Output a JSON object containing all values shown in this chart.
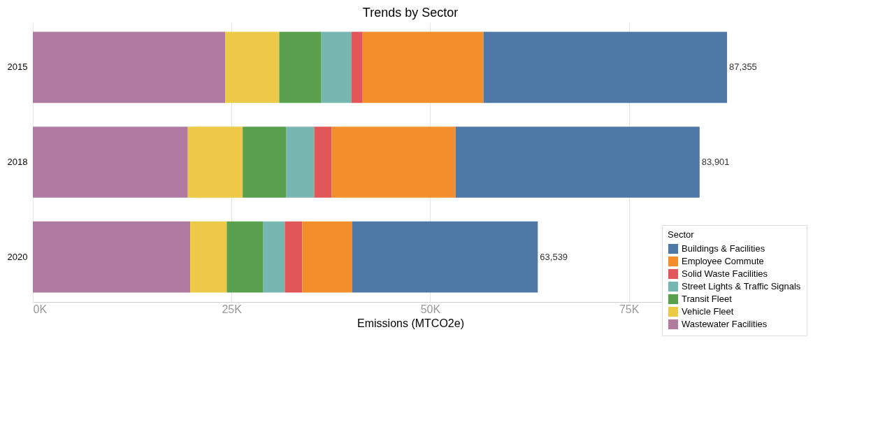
{
  "chart_data": {
    "type": "bar",
    "orientation": "horizontal",
    "stacked": true,
    "title": "Trends by Sector",
    "xlabel": "Emissions (MTCO2e)",
    "legend_title": "Sector",
    "legend": "bottom right",
    "grid": "x",
    "categories": [
      "2015",
      "2018",
      "2020"
    ],
    "series": [
      {
        "name": "Wastewater Facilities",
        "color": "#b07aa1",
        "values": [
          24200,
          19500,
          19800
        ]
      },
      {
        "name": "Vehicle Fleet",
        "color": "#edc948",
        "values": [
          6800,
          6900,
          4600
        ]
      },
      {
        "name": "Transit Fleet",
        "color": "#59a14f",
        "values": [
          5300,
          5500,
          4600
        ]
      },
      {
        "name": "Street Lights & Traffic Signals",
        "color": "#76b7b2",
        "values": [
          3800,
          3500,
          2700
        ]
      },
      {
        "name": "Solid Waste Facilities",
        "color": "#e15759",
        "values": [
          1400,
          2200,
          2200
        ]
      },
      {
        "name": "Employee Commute",
        "color": "#f28e2b",
        "values": [
          15200,
          15600,
          6300
        ]
      },
      {
        "name": "Buildings & Facilities",
        "color": "#4e79a7",
        "values": [
          30655,
          30701,
          23339
        ]
      }
    ],
    "totals": [
      "87,355",
      "83,901",
      "63,539"
    ],
    "xlim": [
      0,
      95000
    ],
    "xticks": [
      {
        "value": 0,
        "label": "0K"
      },
      {
        "value": 25000,
        "label": "25K"
      },
      {
        "value": 50000,
        "label": "50K"
      },
      {
        "value": 75000,
        "label": "75K"
      }
    ]
  }
}
